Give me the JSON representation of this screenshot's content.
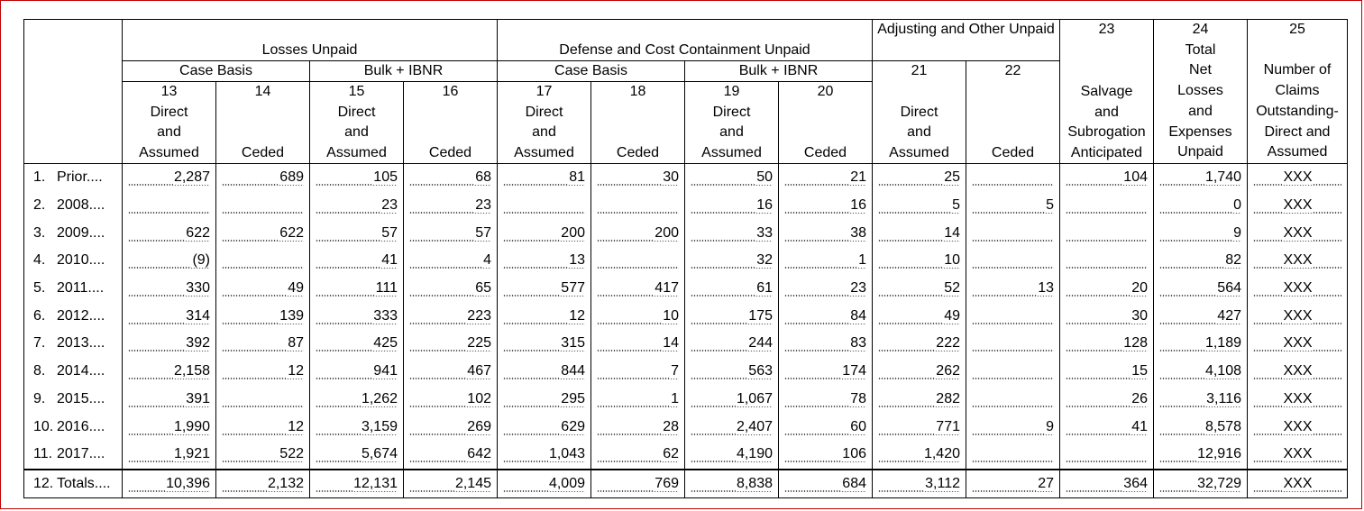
{
  "headers": {
    "losses_unpaid": "Losses Unpaid",
    "defense_unpaid": "Defense and Cost Containment Unpaid",
    "adjusting_unpaid": "Adjusting and Other Unpaid",
    "case_basis": "Case Basis",
    "bulk_ibnr": "Bulk + IBNR",
    "col13": "13\nDirect\nand\nAssumed",
    "col14": "14\n\n\nCeded",
    "col15": "15\nDirect\nand\nAssumed",
    "col16": "16\n\n\nCeded",
    "col17": "17\nDirect\nand\nAssumed",
    "col18": "18\n\n\nCeded",
    "col19": "19\nDirect\nand\nAssumed",
    "col20": "20\n\n\nCeded",
    "col21_num": "21",
    "col22_num": "22",
    "col21": "Direct\nand\nAssumed",
    "col22": "Ceded",
    "col23_num": "23",
    "col23": "Salvage\nand\nSubrogation\nAnticipated",
    "col24_num": "24",
    "col24": "Total\nNet\nLosses\nand\nExpenses\nUnpaid",
    "col25_num": "25",
    "col25": "Number of\nClaims\nOutstanding-\nDirect and\nAssumed"
  },
  "rows": [
    {
      "num": "1.",
      "label": "Prior",
      "c": [
        "2,287",
        "689",
        "105",
        "68",
        "81",
        "30",
        "50",
        "21",
        "25",
        "",
        "104",
        "1,740",
        "XXX"
      ]
    },
    {
      "num": "2.",
      "label": "2008",
      "c": [
        "",
        "",
        "23",
        "23",
        "",
        "",
        "16",
        "16",
        "5",
        "5",
        "",
        "0",
        "XXX"
      ]
    },
    {
      "num": "3.",
      "label": "2009",
      "c": [
        "622",
        "622",
        "57",
        "57",
        "200",
        "200",
        "33",
        "38",
        "14",
        "",
        "",
        "9",
        "XXX"
      ]
    },
    {
      "num": "4.",
      "label": "2010",
      "c": [
        "(9)",
        "",
        "41",
        "4",
        "13",
        "",
        "32",
        "1",
        "10",
        "",
        "",
        "82",
        "XXX"
      ]
    },
    {
      "num": "5.",
      "label": "2011",
      "c": [
        "330",
        "49",
        "111",
        "65",
        "577",
        "417",
        "61",
        "23",
        "52",
        "13",
        "20",
        "564",
        "XXX"
      ]
    },
    {
      "num": "6.",
      "label": "2012",
      "c": [
        "314",
        "139",
        "333",
        "223",
        "12",
        "10",
        "175",
        "84",
        "49",
        "",
        "30",
        "427",
        "XXX"
      ]
    },
    {
      "num": "7.",
      "label": "2013",
      "c": [
        "392",
        "87",
        "425",
        "225",
        "315",
        "14",
        "244",
        "83",
        "222",
        "",
        "128",
        "1,189",
        "XXX"
      ]
    },
    {
      "num": "8.",
      "label": "2014",
      "c": [
        "2,158",
        "12",
        "941",
        "467",
        "844",
        "7",
        "563",
        "174",
        "262",
        "",
        "15",
        "4,108",
        "XXX"
      ]
    },
    {
      "num": "9.",
      "label": "2015",
      "c": [
        "391",
        "",
        "1,262",
        "102",
        "295",
        "1",
        "1,067",
        "78",
        "282",
        "",
        "26",
        "3,116",
        "XXX"
      ]
    },
    {
      "num": "10.",
      "label": "2016",
      "c": [
        "1,990",
        "12",
        "3,159",
        "269",
        "629",
        "28",
        "2,407",
        "60",
        "771",
        "9",
        "41",
        "8,578",
        "XXX"
      ]
    },
    {
      "num": "11.",
      "label": "2017",
      "c": [
        "1,921",
        "522",
        "5,674",
        "642",
        "1,043",
        "62",
        "4,190",
        "106",
        "1,420",
        "",
        "",
        "12,916",
        "XXX"
      ]
    }
  ],
  "totals": {
    "num": "12.",
    "label": "Totals",
    "c": [
      "10,396",
      "2,132",
      "12,131",
      "2,145",
      "4,009",
      "769",
      "8,838",
      "684",
      "3,112",
      "27",
      "364",
      "32,729",
      "XXX"
    ]
  }
}
